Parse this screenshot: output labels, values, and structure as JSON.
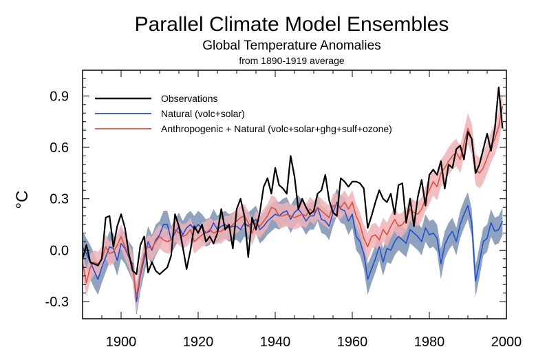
{
  "chart_data": {
    "type": "line",
    "title": "Parallel Climate Model Ensembles",
    "subtitle": "Global Temperature Anomalies",
    "subsubtitle": "from 1890-1919 average",
    "ylabel": "°C",
    "xlabel": "",
    "xlim": [
      1890,
      2000
    ],
    "ylim": [
      -0.4,
      1.05
    ],
    "xticks": [
      1900,
      1920,
      1940,
      1960,
      1980,
      2000
    ],
    "yticks": [
      -0.3,
      0.0,
      0.3,
      0.6,
      0.9
    ],
    "ytick_labels": [
      "-0.3",
      "0.0",
      "0.3",
      "0.6",
      "0.9"
    ],
    "legend_position": "top-left",
    "colors": {
      "observations": "#000000",
      "natural": "#1f4fd1",
      "natural_band": "#8fa3bf",
      "anthro": "#e0503a",
      "anthro_band": "#f1b3b6"
    },
    "x": [
      1890,
      1891,
      1892,
      1893,
      1894,
      1895,
      1896,
      1897,
      1898,
      1899,
      1900,
      1901,
      1902,
      1903,
      1904,
      1905,
      1906,
      1907,
      1908,
      1909,
      1910,
      1911,
      1912,
      1913,
      1914,
      1915,
      1916,
      1917,
      1918,
      1919,
      1920,
      1921,
      1922,
      1923,
      1924,
      1925,
      1926,
      1927,
      1928,
      1929,
      1930,
      1931,
      1932,
      1933,
      1934,
      1935,
      1936,
      1937,
      1938,
      1939,
      1940,
      1941,
      1942,
      1943,
      1944,
      1945,
      1946,
      1947,
      1948,
      1949,
      1950,
      1951,
      1952,
      1953,
      1954,
      1955,
      1956,
      1957,
      1958,
      1959,
      1960,
      1961,
      1962,
      1963,
      1964,
      1965,
      1966,
      1967,
      1968,
      1969,
      1970,
      1971,
      1972,
      1973,
      1974,
      1975,
      1976,
      1977,
      1978,
      1979,
      1980,
      1981,
      1982,
      1983,
      1984,
      1985,
      1986,
      1987,
      1988,
      1989,
      1990,
      1991,
      1992,
      1993,
      1994,
      1995,
      1996,
      1997,
      1998,
      1999
    ],
    "series": [
      {
        "key": "observations",
        "name": "Observations",
        "values": [
          -0.05,
          0.03,
          -0.07,
          -0.08,
          -0.09,
          -0.05,
          0.19,
          0.2,
          0.02,
          0.14,
          0.21,
          0.13,
          -0.02,
          -0.12,
          -0.14,
          0.03,
          0.08,
          -0.13,
          -0.07,
          -0.12,
          -0.14,
          -0.12,
          -0.1,
          -0.03,
          0.21,
          0.14,
          0.02,
          -0.11,
          0.0,
          0.14,
          0.1,
          0.15,
          0.05,
          0.08,
          0.04,
          0.1,
          0.24,
          0.12,
          0.15,
          0.01,
          0.24,
          0.3,
          0.2,
          -0.04,
          0.19,
          0.12,
          0.22,
          0.37,
          0.42,
          0.33,
          0.48,
          0.38,
          0.36,
          0.33,
          0.55,
          0.43,
          0.24,
          0.3,
          0.25,
          0.21,
          0.23,
          0.33,
          0.35,
          0.44,
          0.29,
          0.22,
          0.2,
          0.42,
          0.4,
          0.37,
          0.4,
          0.4,
          0.39,
          0.36,
          0.13,
          0.2,
          0.28,
          0.35,
          0.3,
          0.28,
          0.33,
          0.21,
          0.38,
          0.39,
          0.16,
          0.3,
          0.14,
          0.31,
          0.41,
          0.26,
          0.44,
          0.47,
          0.44,
          0.52,
          0.36,
          0.5,
          0.48,
          0.59,
          0.61,
          0.53,
          0.69,
          0.65,
          0.45,
          0.5,
          0.59,
          0.68,
          0.58,
          0.71,
          0.95,
          0.71
        ]
      },
      {
        "key": "natural",
        "name": "Natural (volc+solar)",
        "values": [
          0.02,
          -0.02,
          -0.07,
          -0.12,
          -0.17,
          -0.1,
          -0.04,
          0.02,
          0.01,
          -0.06,
          0.04,
          0.01,
          -0.04,
          -0.08,
          -0.3,
          -0.15,
          -0.05,
          0.05,
          0.0,
          0.06,
          0.09,
          0.15,
          0.15,
          0.06,
          0.1,
          0.14,
          0.09,
          0.13,
          0.15,
          0.12,
          0.15,
          0.13,
          0.1,
          0.11,
          0.16,
          0.12,
          0.14,
          0.15,
          0.13,
          0.14,
          0.14,
          0.12,
          0.16,
          0.14,
          0.16,
          0.18,
          0.12,
          0.14,
          0.17,
          0.19,
          0.21,
          0.2,
          0.22,
          0.23,
          0.18,
          0.22,
          0.24,
          0.21,
          0.17,
          0.2,
          0.2,
          0.25,
          0.18,
          0.17,
          0.14,
          0.22,
          0.28,
          0.24,
          0.23,
          0.17,
          0.21,
          0.08,
          0.05,
          -0.02,
          -0.17,
          -0.11,
          -0.05,
          0.02,
          -0.07,
          0.01,
          0.0,
          0.05,
          0.08,
          0.06,
          0.04,
          0.12,
          0.1,
          0.08,
          0.05,
          0.13,
          0.09,
          0.1,
          0.07,
          -0.08,
          0.03,
          0.08,
          0.11,
          0.05,
          0.15,
          0.21,
          0.26,
          0.16,
          -0.18,
          -0.07,
          0.05,
          0.07,
          0.16,
          0.11,
          0.12,
          0.17
        ]
      },
      {
        "key": "anthro",
        "name": "Anthropogenic + Natural (volc+solar+ghg+sulf+ozone)",
        "values": [
          -0.07,
          -0.19,
          -0.1,
          -0.07,
          -0.08,
          -0.05,
          0.02,
          -0.02,
          -0.01,
          0.03,
          0.08,
          0.02,
          -0.03,
          -0.1,
          -0.27,
          -0.13,
          -0.02,
          0.02,
          0.01,
          0.05,
          0.08,
          0.06,
          0.05,
          0.06,
          0.12,
          0.1,
          0.08,
          0.09,
          0.12,
          0.05,
          0.07,
          0.09,
          0.1,
          0.12,
          0.1,
          0.11,
          0.11,
          0.13,
          0.13,
          0.15,
          0.17,
          0.19,
          0.2,
          0.16,
          0.1,
          0.16,
          0.14,
          0.17,
          0.2,
          0.25,
          0.24,
          0.2,
          0.2,
          0.21,
          0.2,
          0.19,
          0.2,
          0.21,
          0.2,
          0.24,
          0.22,
          0.25,
          0.23,
          0.21,
          0.19,
          0.26,
          0.26,
          0.25,
          0.28,
          0.24,
          0.28,
          0.2,
          0.15,
          0.07,
          0.02,
          0.08,
          0.09,
          0.06,
          0.12,
          0.09,
          0.14,
          0.18,
          0.14,
          0.15,
          0.18,
          0.24,
          0.22,
          0.21,
          0.24,
          0.3,
          0.35,
          0.4,
          0.37,
          0.45,
          0.48,
          0.52,
          0.55,
          0.57,
          0.53,
          0.62,
          0.71,
          0.65,
          0.47,
          0.45,
          0.48,
          0.54,
          0.6,
          0.65,
          0.72,
          0.84
        ]
      }
    ],
    "bands": [
      {
        "key": "natural_band",
        "of": "natural",
        "spread": [
          0.09,
          0.09,
          0.1,
          0.1,
          0.09,
          0.09,
          0.09,
          0.09,
          0.09,
          0.09,
          0.09,
          0.09,
          0.09,
          0.1,
          0.08,
          0.09,
          0.09,
          0.09,
          0.09,
          0.09,
          0.08,
          0.08,
          0.08,
          0.08,
          0.08,
          0.08,
          0.08,
          0.08,
          0.08,
          0.08,
          0.08,
          0.08,
          0.08,
          0.08,
          0.08,
          0.08,
          0.08,
          0.08,
          0.08,
          0.08,
          0.08,
          0.08,
          0.08,
          0.08,
          0.08,
          0.08,
          0.08,
          0.08,
          0.08,
          0.08,
          0.08,
          0.08,
          0.08,
          0.08,
          0.08,
          0.08,
          0.08,
          0.08,
          0.08,
          0.08,
          0.08,
          0.08,
          0.08,
          0.08,
          0.08,
          0.08,
          0.08,
          0.08,
          0.08,
          0.08,
          0.08,
          0.08,
          0.08,
          0.09,
          0.09,
          0.08,
          0.08,
          0.08,
          0.08,
          0.08,
          0.08,
          0.08,
          0.08,
          0.08,
          0.08,
          0.08,
          0.08,
          0.08,
          0.08,
          0.08,
          0.08,
          0.08,
          0.08,
          0.09,
          0.08,
          0.08,
          0.08,
          0.08,
          0.08,
          0.08,
          0.08,
          0.08,
          0.09,
          0.09,
          0.08,
          0.08,
          0.08,
          0.08,
          0.08,
          0.08
        ]
      },
      {
        "key": "anthro_band",
        "of": "anthro",
        "spread": [
          0.07,
          0.08,
          0.08,
          0.07,
          0.07,
          0.07,
          0.07,
          0.07,
          0.07,
          0.07,
          0.07,
          0.07,
          0.07,
          0.08,
          0.09,
          0.08,
          0.07,
          0.07,
          0.07,
          0.07,
          0.07,
          0.07,
          0.07,
          0.07,
          0.07,
          0.07,
          0.07,
          0.07,
          0.07,
          0.07,
          0.07,
          0.07,
          0.07,
          0.07,
          0.07,
          0.07,
          0.07,
          0.07,
          0.07,
          0.07,
          0.07,
          0.07,
          0.07,
          0.07,
          0.07,
          0.07,
          0.07,
          0.07,
          0.07,
          0.07,
          0.07,
          0.07,
          0.07,
          0.07,
          0.07,
          0.07,
          0.07,
          0.07,
          0.07,
          0.07,
          0.07,
          0.07,
          0.07,
          0.07,
          0.07,
          0.07,
          0.07,
          0.07,
          0.07,
          0.07,
          0.07,
          0.07,
          0.07,
          0.08,
          0.08,
          0.07,
          0.07,
          0.07,
          0.07,
          0.07,
          0.07,
          0.07,
          0.07,
          0.07,
          0.07,
          0.07,
          0.07,
          0.07,
          0.07,
          0.07,
          0.08,
          0.08,
          0.08,
          0.08,
          0.08,
          0.08,
          0.08,
          0.08,
          0.08,
          0.08,
          0.09,
          0.09,
          0.09,
          0.09,
          0.09,
          0.09,
          0.09,
          0.09,
          0.09,
          0.09
        ]
      }
    ]
  }
}
